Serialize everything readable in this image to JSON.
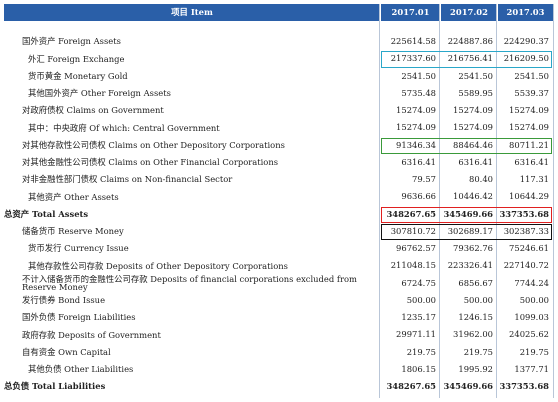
{
  "header": {
    "item": "项目  Item",
    "columns": [
      "2017.01",
      "2017.02",
      "2017.03"
    ]
  },
  "rows": [
    {
      "label": "国外资产   Foreign Assets",
      "values": [
        "225614.58",
        "224887.86",
        "224290.37"
      ]
    },
    {
      "label": "外汇  Foreign Exchange",
      "values": [
        "217337.60",
        "216756.41",
        "216209.50"
      ]
    },
    {
      "label": "货币黄金  Monetary Gold",
      "values": [
        "2541.50",
        "2541.50",
        "2541.50"
      ]
    },
    {
      "label": "其他国外资产  Other Foreign Assets",
      "values": [
        "5735.48",
        "5589.95",
        "5539.37"
      ]
    },
    {
      "label": "对政府债权   Claims on Government",
      "values": [
        "15274.09",
        "15274.09",
        "15274.09"
      ]
    },
    {
      "label": "其中：中央政府  Of which: Central Government",
      "values": [
        "15274.09",
        "15274.09",
        "15274.09"
      ]
    },
    {
      "label": "对其他存款性公司债权  Claims on Other Depository Corporations",
      "values": [
        "91346.34",
        "88464.46",
        "80711.21"
      ]
    },
    {
      "label": "对其他金融性公司债权  Claims on Other Financial Corporations",
      "values": [
        "6316.41",
        "6316.41",
        "6316.41"
      ]
    },
    {
      "label": "对非金融性部门债权  Claims on Non-financial Sector",
      "values": [
        "79.57",
        "80.40",
        "117.31"
      ]
    },
    {
      "label": "其他资产  Other Assets",
      "values": [
        "9636.66",
        "10446.42",
        "10644.29"
      ]
    },
    {
      "label": "总资产  Total Assets",
      "values": [
        "348267.65",
        "345469.66",
        "337353.68"
      ]
    },
    {
      "label": "储备货币  Reserve Money",
      "values": [
        "307810.72",
        "302689.17",
        "302387.33"
      ]
    },
    {
      "label": "货币发行  Currency Issue",
      "values": [
        "96762.57",
        "79362.76",
        "75246.61"
      ]
    },
    {
      "label": "其他存款性公司存款  Deposits of Other Depository Corporations",
      "values": [
        "211048.15",
        "223326.41",
        "227140.72"
      ]
    },
    {
      "label": "不计入储备货币的金融性公司存款  Deposits of financial corporations excluded from Reserve Money",
      "values": [
        "6724.75",
        "6856.67",
        "7744.24"
      ]
    },
    {
      "label": "发行债券  Bond Issue",
      "values": [
        "500.00",
        "500.00",
        "500.00"
      ]
    },
    {
      "label": "国外负债  Foreign Liabilities",
      "values": [
        "1235.17",
        "1246.15",
        "1099.03"
      ]
    },
    {
      "label": "政府存款  Deposits of Government",
      "values": [
        "29971.11",
        "31962.00",
        "24025.62"
      ]
    },
    {
      "label": "自有资金  Own Capital",
      "values": [
        "219.75",
        "219.75",
        "219.75"
      ]
    },
    {
      "label": "其他负债  Other Liabilities",
      "values": [
        "1806.15",
        "1995.92",
        "1377.71"
      ]
    },
    {
      "label": "总负债  Total Liabilities",
      "values": [
        "348267.65",
        "345469.66",
        "337353.68"
      ]
    }
  ]
}
